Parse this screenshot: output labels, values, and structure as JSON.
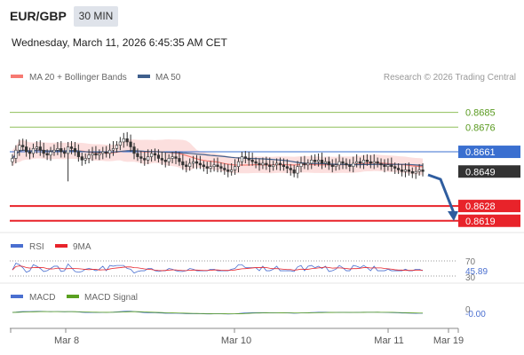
{
  "header": {
    "symbol": "EUR/GBP",
    "timeframe": "30 MIN",
    "datetime": "Wednesday, March 11, 2026 6:45:35 AM CET"
  },
  "legend": {
    "ma20": "MA 20 + Bollinger Bands",
    "ma50": "MA 50",
    "credit": "Research © 2026 Trading Central"
  },
  "colors": {
    "ma20": "#f77a72",
    "bollinger_fill": "#fbd9d8",
    "ma50": "#3f5f8c",
    "resistance": "#8fbf5a",
    "pivot": "#3a6fd0",
    "support": "#e8232a",
    "last_price": "#333333",
    "rsi": "#4a6fd0",
    "rsi_ma": "#e8232a",
    "macd": "#4a6fd0",
    "macd_signal": "#5aa020",
    "arrow": "#2f5d9f"
  },
  "price_levels": [
    {
      "label": "0.8685",
      "kind": "resistance"
    },
    {
      "label": "0.8676",
      "kind": "resistance"
    },
    {
      "label": "0.8661",
      "kind": "pivot"
    },
    {
      "label": "0.8649",
      "kind": "last"
    },
    {
      "label": "0.8628",
      "kind": "support"
    },
    {
      "label": "0.8619",
      "kind": "support"
    }
  ],
  "rsi_panel": {
    "title": "RSI",
    "ma_title": "9MA",
    "level_high": "70",
    "value": "45.89",
    "level_low": "30"
  },
  "macd_panel": {
    "title": "MACD",
    "signal_title": "MACD Signal",
    "level_mark": "0",
    "value": "-0.00"
  },
  "x_axis": {
    "labels": [
      "Mar 8",
      "Mar 10",
      "Mar 11",
      "Mar 19"
    ]
  },
  "chart_data": {
    "type": "candlestick",
    "ylim": [
      0.8614,
      0.8694
    ],
    "levels": [
      0.8685,
      0.8676,
      0.8661,
      0.8649,
      0.8628,
      0.8619
    ],
    "last_price": 0.8649,
    "candles_close": [
      0.8657,
      0.8662,
      0.8665,
      0.8664,
      0.8661,
      0.866,
      0.8663,
      0.8664,
      0.8662,
      0.866,
      0.8659,
      0.8661,
      0.8662,
      0.8663,
      0.8661,
      0.866,
      0.8664,
      0.8663,
      0.8661,
      0.8658,
      0.8656,
      0.8657,
      0.8659,
      0.866,
      0.8659,
      0.866,
      0.8661,
      0.866,
      0.8662,
      0.8663,
      0.8665,
      0.8667,
      0.8669,
      0.8667,
      0.8664,
      0.866,
      0.8658,
      0.8657,
      0.8656,
      0.8658,
      0.866,
      0.8659,
      0.8657,
      0.8656,
      0.8655,
      0.8657,
      0.8658,
      0.8657,
      0.8655,
      0.8653,
      0.8652,
      0.8654,
      0.8655,
      0.8654,
      0.8653,
      0.8652,
      0.8651,
      0.8652,
      0.8653,
      0.8652,
      0.8651,
      0.865,
      0.8649,
      0.865,
      0.8652,
      0.8655,
      0.8658,
      0.8657,
      0.8656,
      0.8655,
      0.8654,
      0.8653,
      0.8654,
      0.8653,
      0.8652,
      0.8653,
      0.8654,
      0.8653,
      0.8652,
      0.8651,
      0.865,
      0.8648,
      0.8652,
      0.8654,
      0.8653,
      0.8654,
      0.8656,
      0.8655,
      0.8656,
      0.8654,
      0.8655,
      0.8653,
      0.8652,
      0.8653,
      0.8655,
      0.8654,
      0.8653,
      0.8652,
      0.8654,
      0.8655,
      0.8654,
      0.8656,
      0.8655,
      0.8654,
      0.8655,
      0.8654,
      0.8653,
      0.8652,
      0.8653,
      0.8652,
      0.8651,
      0.865,
      0.8649,
      0.865,
      0.8649,
      0.8648,
      0.8649,
      0.865,
      0.8649
    ],
    "rsi_last": 45.89,
    "macd_last": -0.0
  }
}
